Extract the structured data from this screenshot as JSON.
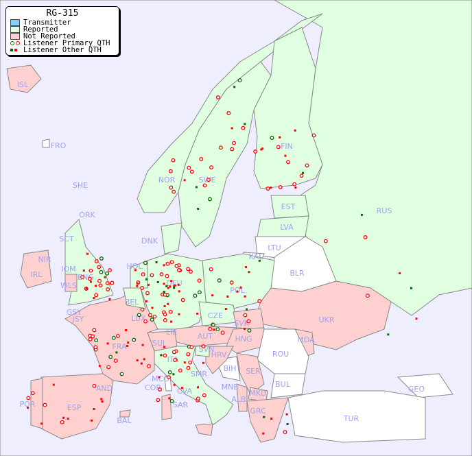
{
  "legend": {
    "title": "RG-315",
    "items": [
      {
        "label": "Transmitter",
        "color": "#87cefa"
      },
      {
        "label": "Reported",
        "color": "#e0ffe0"
      },
      {
        "label": "Not Reported",
        "color": "#ffd0d0"
      },
      {
        "label": "Listener Primary QTH",
        "colors": [
          "#006400",
          "#ff0000"
        ]
      },
      {
        "label": "Listener Other QTH",
        "colors": [
          "#006400",
          "#ff0000"
        ]
      }
    ]
  },
  "colors": {
    "sea": "#eeeeff",
    "reported": "#e0ffe0",
    "not_reported": "#ffd0d0",
    "no_data": "#ffffff",
    "label": "#a0a0f0"
  },
  "countries": [
    "ISL",
    "FRO",
    "SHE",
    "ORK",
    "NOR",
    "SWE",
    "FIN",
    "RUS",
    "EST",
    "LVA",
    "LTU",
    "KAL",
    "BLR",
    "DNK",
    "SCT",
    "NIR",
    "IOM",
    "IRL",
    "WLS",
    "ENG",
    "HOL",
    "BEL",
    "LUX",
    "DEU",
    "POL",
    "CZE",
    "SVK",
    "UKR",
    "MDA",
    "AUT",
    "HNG",
    "GSY",
    "JSY",
    "FRA",
    "SUI",
    "LIE",
    "ITA",
    "SVN",
    "HRV",
    "ROU",
    "BIH",
    "SER",
    "BUL",
    "MCO",
    "COR",
    "SMR",
    "CVA",
    "MNE",
    "MKD",
    "ALB",
    "GEO",
    "AND",
    "ESP",
    "POR",
    "SAR",
    "BAL",
    "GRC",
    "TUR"
  ]
}
